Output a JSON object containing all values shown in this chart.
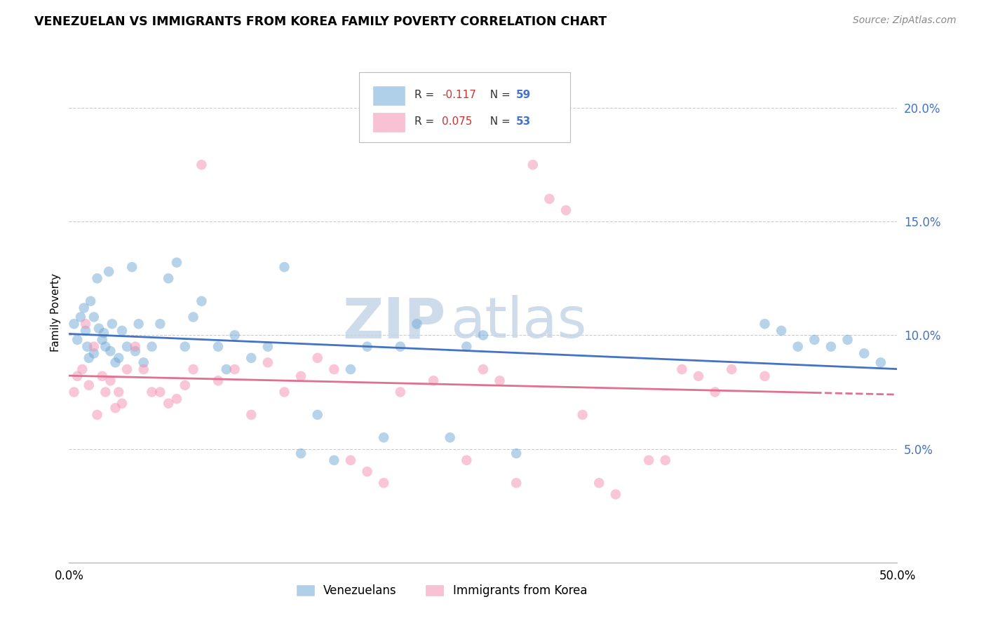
{
  "title": "VENEZUELAN VS IMMIGRANTS FROM KOREA FAMILY POVERTY CORRELATION CHART",
  "source": "Source: ZipAtlas.com",
  "ylabel": "Family Poverty",
  "xlim": [
    0,
    50
  ],
  "ylim": [
    0,
    22
  ],
  "yticks": [
    5,
    10,
    15,
    20
  ],
  "ytick_labels": [
    "5.0%",
    "10.0%",
    "15.0%",
    "20.0%"
  ],
  "venezuelan_color": "#6fa8d6",
  "korea_color": "#f48fb1",
  "venezuelan_line_color": "#4472c4",
  "korea_line_color": "#e07090",
  "venezuelan_R": "-0.117",
  "venezuelan_N": "59",
  "korea_R": "0.075",
  "korea_N": "53",
  "legend_label_1": "Venezuelans",
  "legend_label_2": "Immigrants from Korea",
  "watermark_zip": "ZIP",
  "watermark_atlas": "atlas",
  "venezuelan_x": [
    0.3,
    0.5,
    0.7,
    0.9,
    1.0,
    1.1,
    1.2,
    1.3,
    1.5,
    1.5,
    1.7,
    1.8,
    2.0,
    2.1,
    2.2,
    2.4,
    2.5,
    2.6,
    2.8,
    3.0,
    3.2,
    3.5,
    3.8,
    4.0,
    4.2,
    4.5,
    5.0,
    5.5,
    6.0,
    6.5,
    7.0,
    7.5,
    8.0,
    9.0,
    9.5,
    10.0,
    11.0,
    12.0,
    13.0,
    14.0,
    15.0,
    16.0,
    17.0,
    18.0,
    19.0,
    20.0,
    21.0,
    23.0,
    24.0,
    25.0,
    27.0,
    42.0,
    43.0,
    44.0,
    45.0,
    46.0,
    47.0,
    48.0,
    49.0
  ],
  "venezuelan_y": [
    10.5,
    9.8,
    10.8,
    11.2,
    10.2,
    9.5,
    9.0,
    11.5,
    10.8,
    9.2,
    12.5,
    10.3,
    9.8,
    10.1,
    9.5,
    12.8,
    9.3,
    10.5,
    8.8,
    9.0,
    10.2,
    9.5,
    13.0,
    9.3,
    10.5,
    8.8,
    9.5,
    10.5,
    12.5,
    13.2,
    9.5,
    10.8,
    11.5,
    9.5,
    8.5,
    10.0,
    9.0,
    9.5,
    13.0,
    4.8,
    6.5,
    4.5,
    8.5,
    9.5,
    5.5,
    9.5,
    10.5,
    5.5,
    9.5,
    10.0,
    4.8,
    10.5,
    10.2,
    9.5,
    9.8,
    9.5,
    9.8,
    9.2,
    8.8
  ],
  "korea_x": [
    0.3,
    0.5,
    0.8,
    1.0,
    1.2,
    1.5,
    1.7,
    2.0,
    2.2,
    2.5,
    2.8,
    3.0,
    3.2,
    3.5,
    4.0,
    4.5,
    5.0,
    5.5,
    6.0,
    6.5,
    7.0,
    7.5,
    8.0,
    9.0,
    10.0,
    11.0,
    12.0,
    13.0,
    14.0,
    15.0,
    16.0,
    17.0,
    18.0,
    19.0,
    20.0,
    22.0,
    24.0,
    25.0,
    26.0,
    27.0,
    28.0,
    29.0,
    30.0,
    31.0,
    32.0,
    33.0,
    35.0,
    36.0,
    37.0,
    38.0,
    39.0,
    40.0,
    42.0
  ],
  "korea_y": [
    7.5,
    8.2,
    8.5,
    10.5,
    7.8,
    9.5,
    6.5,
    8.2,
    7.5,
    8.0,
    6.8,
    7.5,
    7.0,
    8.5,
    9.5,
    8.5,
    7.5,
    7.5,
    7.0,
    7.2,
    7.8,
    8.5,
    17.5,
    8.0,
    8.5,
    6.5,
    8.8,
    7.5,
    8.2,
    9.0,
    8.5,
    4.5,
    4.0,
    3.5,
    7.5,
    8.0,
    4.5,
    8.5,
    8.0,
    3.5,
    17.5,
    16.0,
    15.5,
    6.5,
    3.5,
    3.0,
    4.5,
    4.5,
    8.5,
    8.2,
    7.5,
    8.5,
    8.2
  ]
}
